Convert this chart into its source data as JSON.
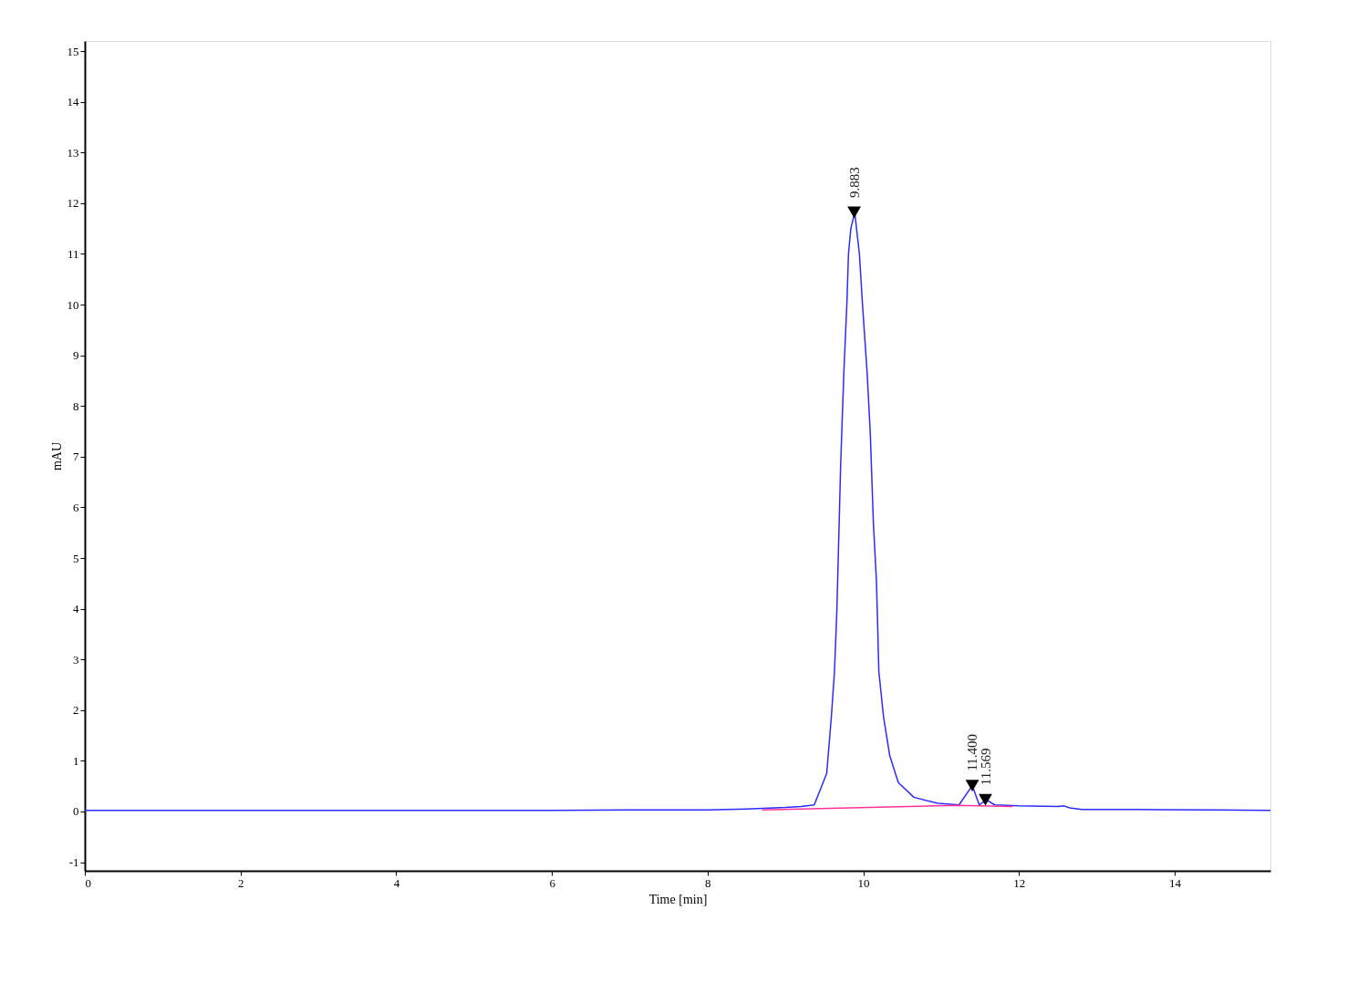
{
  "chart_data": {
    "type": "line",
    "xlabel": "Time [min]",
    "ylabel": "mAU",
    "xlim": [
      0,
      15.23
    ],
    "ylim": [
      -1.17,
      15.2
    ],
    "xticks": [
      0,
      2,
      4,
      6,
      8,
      10,
      12,
      14
    ],
    "yticks": [
      -1,
      0,
      1,
      2,
      3,
      4,
      5,
      6,
      7,
      8,
      9,
      10,
      11,
      12,
      13,
      14,
      15
    ],
    "grid": false,
    "marker": "none",
    "line_style": "solid",
    "series": [
      {
        "color": "#2b2bff",
        "x": [
          0,
          2,
          4,
          6,
          7,
          8,
          8.5,
          9.0,
          9.2,
          9.37,
          9.53,
          9.59,
          9.63,
          9.66,
          9.68,
          9.71,
          9.75,
          9.79,
          9.81,
          9.84,
          9.89,
          9.95,
          9.99,
          10.05,
          10.09,
          10.13,
          10.17,
          10.2,
          10.26,
          10.34,
          10.45,
          10.65,
          10.96,
          11.23,
          11.4,
          11.49,
          11.58,
          11.69,
          12.0,
          12.5,
          12.58,
          12.65,
          12.81,
          13.5,
          14.5,
          15.23
        ],
        "values": [
          0.02,
          0.02,
          0.02,
          0.02,
          0.03,
          0.03,
          0.05,
          0.08,
          0.1,
          0.13,
          0.75,
          1.87,
          2.76,
          3.93,
          5.1,
          6.87,
          8.64,
          10.05,
          11,
          11.5,
          11.82,
          11,
          10,
          8.64,
          7.46,
          5.69,
          4.52,
          2.76,
          1.87,
          1.1,
          0.57,
          0.28,
          0.16,
          0.13,
          0.51,
          0.13,
          0.23,
          0.13,
          0.11,
          0.1,
          0.11,
          0.07,
          0.04,
          0.04,
          0.03,
          0.02
        ]
      },
      {
        "color": "#ff3399",
        "x": [
          8.7,
          11.2,
          11.49,
          11.92
        ],
        "values": [
          0.03,
          0.12,
          0.11,
          0.1
        ]
      }
    ],
    "annotations": [
      {
        "text": "9.883",
        "x": 9.883,
        "y": 11.82
      },
      {
        "text": "11.400",
        "x": 11.4,
        "y": 0.51
      },
      {
        "text": "11.569",
        "x": 11.569,
        "y": 0.23
      }
    ]
  }
}
